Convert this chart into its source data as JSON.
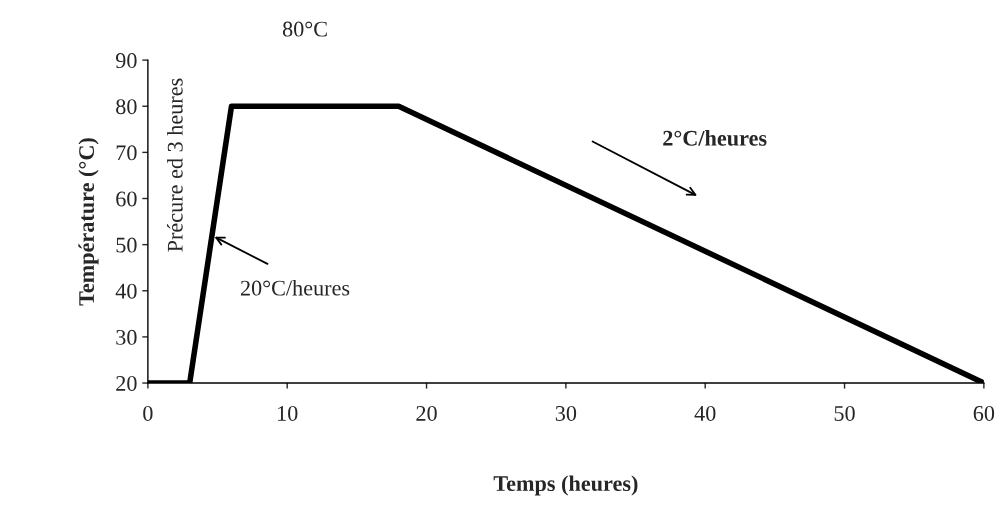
{
  "chart_data": {
    "type": "line",
    "xlabel": "Temps (heures)",
    "ylabel": "Température (°C)",
    "x": [
      0,
      3,
      6,
      18,
      60
    ],
    "series": [
      {
        "color": "#000000",
        "values": [
          20,
          20,
          80,
          80,
          20
        ]
      }
    ],
    "xlim": [
      0,
      60
    ],
    "xticks": [
      0,
      10,
      20,
      30,
      40,
      50,
      60
    ],
    "ylim": [
      20,
      90
    ],
    "yticks": [
      20,
      30,
      40,
      50,
      60,
      70,
      80,
      90
    ],
    "grid": false,
    "marker": "none",
    "line_style": "solid",
    "annotations": [
      "80°C",
      "Précure ed 3 heures",
      {
        "text": "20°C/heures",
        "x": 4.6,
        "y": 52
      },
      "2°C/heures"
    ]
  }
}
